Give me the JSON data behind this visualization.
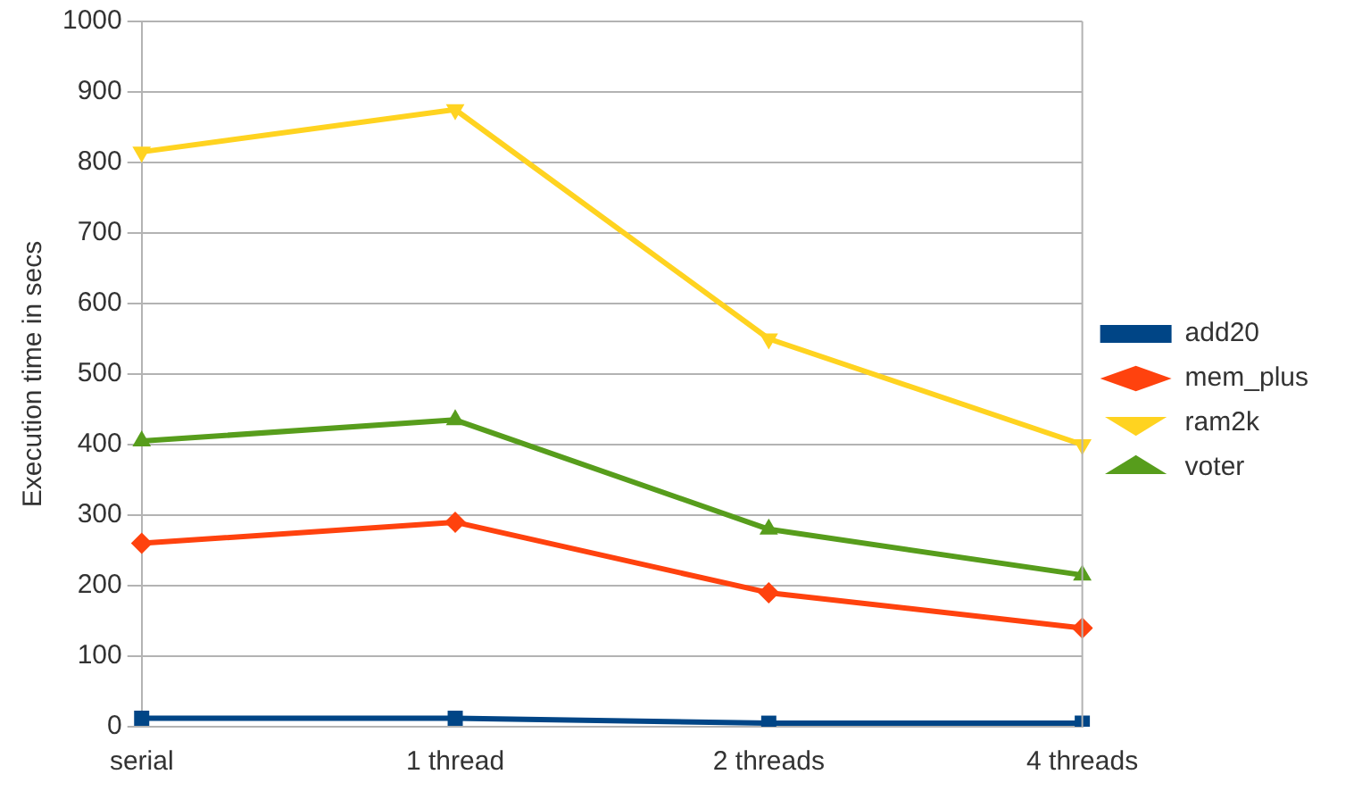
{
  "chart_data": {
    "type": "line",
    "ylabel": "Execution time in secs",
    "categories": [
      "serial",
      "1 thread",
      "2 threads",
      "4 threads"
    ],
    "ylim": [
      0,
      1000
    ],
    "yticks": [
      0,
      100,
      200,
      300,
      400,
      500,
      600,
      700,
      800,
      900,
      1000
    ],
    "grid": "y",
    "legend": "right",
    "series": [
      {
        "name": "add20",
        "color": "#004586",
        "marker": "square",
        "values": [
          12,
          12,
          5,
          5
        ]
      },
      {
        "name": "mem_plus",
        "color": "#ff420e",
        "marker": "diamond",
        "values": [
          260,
          290,
          190,
          140
        ]
      },
      {
        "name": "ram2k",
        "color": "#ffd320",
        "marker": "triangle-down",
        "values": [
          815,
          875,
          550,
          400
        ]
      },
      {
        "name": "voter",
        "color": "#579d1c",
        "marker": "triangle",
        "values": [
          405,
          435,
          280,
          215
        ]
      }
    ]
  }
}
